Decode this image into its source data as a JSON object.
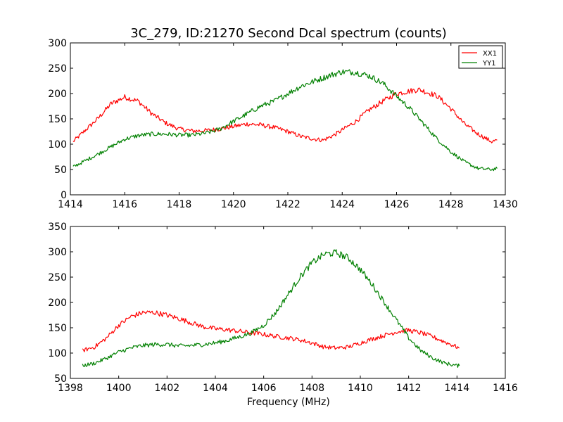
{
  "chart_data": [
    {
      "type": "line",
      "title": "3C_279, ID:21270 Second Dcal spectrum (counts)",
      "xlabel": "",
      "ylabel": "",
      "xlim": [
        1414,
        1430
      ],
      "ylim": [
        0,
        300
      ],
      "xticks": [
        1414,
        1416,
        1418,
        1420,
        1422,
        1424,
        1426,
        1428,
        1430
      ],
      "yticks": [
        0,
        50,
        100,
        150,
        200,
        250,
        300
      ],
      "grid": false,
      "legend": "top-right",
      "series": [
        {
          "name": "XX1",
          "color": "#ff0000",
          "x": [
            1414.1,
            1415.0,
            1415.5,
            1416.0,
            1416.5,
            1417.0,
            1417.5,
            1418.0,
            1418.5,
            1419.0,
            1419.5,
            1420.0,
            1420.5,
            1421.0,
            1421.5,
            1422.0,
            1422.5,
            1423.0,
            1423.3,
            1423.7,
            1424.0,
            1424.5,
            1425.0,
            1425.5,
            1426.0,
            1426.5,
            1426.8,
            1427.0,
            1427.5,
            1428.0,
            1428.5,
            1429.0,
            1429.5,
            1429.7
          ],
          "y": [
            105,
            150,
            180,
            193,
            185,
            160,
            142,
            130,
            126,
            127,
            130,
            135,
            140,
            138,
            133,
            125,
            115,
            110,
            108,
            118,
            128,
            145,
            168,
            185,
            200,
            205,
            208,
            205,
            195,
            170,
            140,
            120,
            105,
            108
          ]
        },
        {
          "name": "YY1",
          "color": "#008000",
          "x": [
            1414.1,
            1415.0,
            1415.5,
            1416.0,
            1416.5,
            1417.0,
            1417.5,
            1418.0,
            1418.5,
            1419.0,
            1419.5,
            1420.0,
            1420.5,
            1421.0,
            1421.5,
            1422.0,
            1422.5,
            1423.0,
            1423.5,
            1424.0,
            1424.5,
            1425.0,
            1425.5,
            1426.0,
            1426.5,
            1427.0,
            1427.5,
            1428.0,
            1428.5,
            1429.0,
            1429.5,
            1429.7
          ],
          "y": [
            55,
            80,
            95,
            110,
            117,
            120,
            120,
            118,
            118,
            122,
            130,
            145,
            160,
            175,
            185,
            200,
            215,
            225,
            235,
            243,
            242,
            235,
            220,
            195,
            170,
            140,
            110,
            85,
            65,
            52,
            50,
            52
          ]
        }
      ]
    },
    {
      "type": "line",
      "title": "",
      "xlabel": "Frequency (MHz)",
      "ylabel": "",
      "xlim": [
        1398,
        1416
      ],
      "ylim": [
        50,
        350
      ],
      "xticks": [
        1398,
        1400,
        1402,
        1404,
        1406,
        1408,
        1410,
        1412,
        1414,
        1416
      ],
      "yticks": [
        50,
        100,
        150,
        200,
        250,
        300,
        350
      ],
      "grid": false,
      "legend": "none",
      "series": [
        {
          "color": "#ff0000",
          "x": [
            1398.5,
            1399.0,
            1399.5,
            1400.0,
            1400.5,
            1401.0,
            1401.5,
            1402.0,
            1402.5,
            1403.0,
            1403.5,
            1404.0,
            1404.5,
            1405.0,
            1405.5,
            1406.0,
            1406.5,
            1407.0,
            1407.5,
            1408.0,
            1408.5,
            1409.0,
            1409.5,
            1410.0,
            1410.5,
            1411.0,
            1411.5,
            1412.0,
            1412.5,
            1413.0,
            1413.5,
            1414.0,
            1414.1
          ],
          "y": [
            105,
            112,
            130,
            155,
            172,
            180,
            180,
            175,
            168,
            160,
            152,
            148,
            146,
            143,
            140,
            137,
            133,
            130,
            126,
            120,
            112,
            110,
            112,
            120,
            128,
            135,
            142,
            145,
            140,
            132,
            122,
            112,
            110
          ]
        },
        {
          "color": "#008000",
          "x": [
            1398.5,
            1399.0,
            1399.5,
            1400.0,
            1400.5,
            1401.0,
            1401.5,
            1402.0,
            1402.5,
            1403.0,
            1403.5,
            1404.0,
            1404.5,
            1405.0,
            1405.5,
            1406.0,
            1406.5,
            1407.0,
            1407.5,
            1408.0,
            1408.5,
            1409.0,
            1409.5,
            1410.0,
            1410.5,
            1411.0,
            1411.5,
            1412.0,
            1412.5,
            1413.0,
            1413.5,
            1414.0,
            1414.1
          ],
          "y": [
            75,
            80,
            90,
            102,
            110,
            115,
            117,
            117,
            114,
            115,
            117,
            120,
            125,
            132,
            140,
            155,
            180,
            215,
            250,
            278,
            295,
            298,
            288,
            265,
            235,
            200,
            165,
            130,
            105,
            90,
            80,
            75,
            75
          ]
        }
      ]
    }
  ]
}
